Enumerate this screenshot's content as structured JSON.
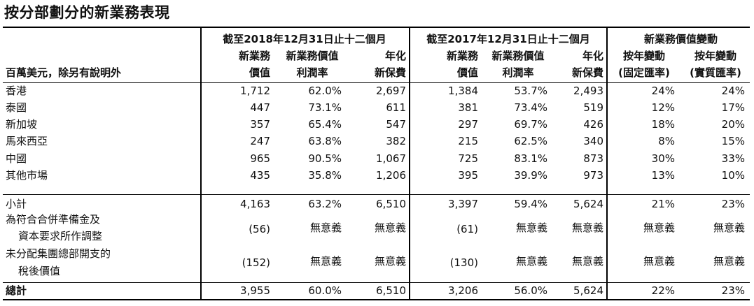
{
  "title": "按分部劃分的新業務表現",
  "header": {
    "unit_label": "百萬美元，除另有說明外",
    "period_2018": "截至2018年12月31日止十二個月",
    "period_2017": "截至2017年12月31日止十二個月",
    "change_group": "新業務價值變動",
    "col_nbv_1": "新業務",
    "col_nbv_2": "價值",
    "col_margin_1": "新業務價值",
    "col_margin_2": "利潤率",
    "col_ape_1": "年化",
    "col_ape_2": "新保費",
    "col_yoy_1": "按年變動",
    "col_yoy_const": "(固定匯率)",
    "col_yoy_actual": "(實質匯率)"
  },
  "rows": [
    {
      "label": "香港",
      "v2018": "1,712",
      "m2018": "62.0%",
      "a2018": "2,697",
      "v2017": "1,384",
      "m2017": "53.7%",
      "a2017": "2,493",
      "cc": "24%",
      "ar": "24%"
    },
    {
      "label": "泰國",
      "v2018": "447",
      "m2018": "73.1%",
      "a2018": "611",
      "v2017": "381",
      "m2017": "73.4%",
      "a2017": "519",
      "cc": "12%",
      "ar": "17%"
    },
    {
      "label": "新加坡",
      "v2018": "357",
      "m2018": "65.4%",
      "a2018": "547",
      "v2017": "297",
      "m2017": "69.7%",
      "a2017": "426",
      "cc": "18%",
      "ar": "20%"
    },
    {
      "label": "馬來西亞",
      "v2018": "247",
      "m2018": "63.8%",
      "a2018": "382",
      "v2017": "215",
      "m2017": "62.5%",
      "a2017": "340",
      "cc": "8%",
      "ar": "15%"
    },
    {
      "label": "中國",
      "v2018": "965",
      "m2018": "90.5%",
      "a2018": "1,067",
      "v2017": "725",
      "m2017": "83.1%",
      "a2017": "873",
      "cc": "30%",
      "ar": "33%"
    },
    {
      "label": "其他市場",
      "v2018": "435",
      "m2018": "35.8%",
      "a2018": "1,206",
      "v2017": "395",
      "m2017": "39.9%",
      "a2017": "973",
      "cc": "13%",
      "ar": "10%"
    }
  ],
  "subtotal": {
    "label": "小計",
    "v2018": "4,163",
    "m2018": "63.2%",
    "a2018": "6,510",
    "v2017": "3,397",
    "m2017": "59.4%",
    "a2017": "5,624",
    "cc": "21%",
    "ar": "23%"
  },
  "adj1": {
    "label_1": "為符合合併準備金及",
    "label_2": "資本要求所作調整",
    "v2018": "(56)",
    "m2018": "無意義",
    "a2018": "無意義",
    "v2017": "(61)",
    "m2017": "無意義",
    "a2017": "無意義",
    "cc": "無意義",
    "ar": "無意義"
  },
  "adj2": {
    "label_1": "未分配集團總部開支的",
    "label_2": "稅後價值",
    "v2018": "(152)",
    "m2018": "無意義",
    "a2018": "無意義",
    "v2017": "(130)",
    "m2017": "無意義",
    "a2017": "無意義",
    "cc": "無意義",
    "ar": "無意義"
  },
  "total": {
    "label": "總計",
    "v2018": "3,955",
    "m2018": "60.0%",
    "a2018": "6,510",
    "v2017": "3,206",
    "m2017": "56.0%",
    "a2017": "5,624",
    "cc": "22%",
    "ar": "23%"
  }
}
